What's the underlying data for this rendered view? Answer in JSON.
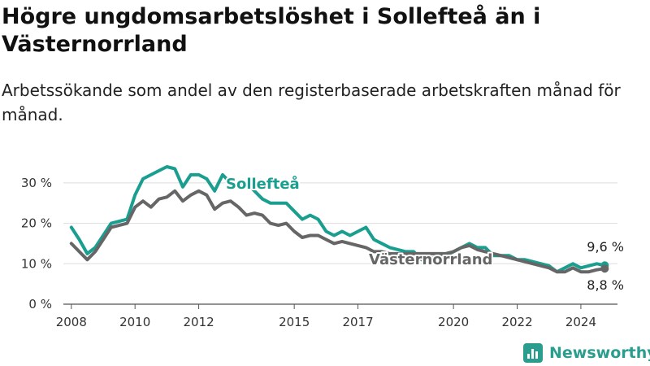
{
  "header": {
    "title": "Högre ungdomsarbetslöshet i Sollefteå än i Västernorrland",
    "subtitle": "Arbetssökande som andel av den registerbaserade arbetskraften månad för månad."
  },
  "brand": {
    "name": "Newsworthy",
    "icon": "bar-chart-icon",
    "color": "#2a9d8f"
  },
  "chart_data": {
    "type": "line",
    "x_ticks": [
      "2008",
      "2010",
      "2012",
      "2015",
      "2017",
      "2020",
      "2022",
      "2024"
    ],
    "y_ticks": [
      "0 %",
      "10 %",
      "20 %",
      "30 %"
    ],
    "ylim": [
      0,
      35
    ],
    "grid": true,
    "series": [
      {
        "name": "Sollefteå",
        "color": "#1a9e8f",
        "end_label": "9,6 %",
        "points": [
          [
            "2008-01",
            19
          ],
          [
            "2008-04",
            16
          ],
          [
            "2008-07",
            12.5
          ],
          [
            "2008-10",
            14
          ],
          [
            "2009-01",
            17
          ],
          [
            "2009-04",
            20
          ],
          [
            "2009-07",
            20.5
          ],
          [
            "2009-10",
            21
          ],
          [
            "2010-01",
            27
          ],
          [
            "2010-04",
            31
          ],
          [
            "2010-07",
            32
          ],
          [
            "2010-10",
            33
          ],
          [
            "2011-01",
            34
          ],
          [
            "2011-04",
            33.5
          ],
          [
            "2011-07",
            29
          ],
          [
            "2011-10",
            32
          ],
          [
            "2012-01",
            32
          ],
          [
            "2012-04",
            31
          ],
          [
            "2012-07",
            28
          ],
          [
            "2012-10",
            32
          ],
          [
            "2013-01",
            30
          ],
          [
            "2013-04",
            29
          ],
          [
            "2013-07",
            30
          ],
          [
            "2013-10",
            28
          ],
          [
            "2014-01",
            26
          ],
          [
            "2014-04",
            25
          ],
          [
            "2014-07",
            25
          ],
          [
            "2014-10",
            25
          ],
          [
            "2015-01",
            23
          ],
          [
            "2015-04",
            21
          ],
          [
            "2015-07",
            22
          ],
          [
            "2015-10",
            21
          ],
          [
            "2016-01",
            18
          ],
          [
            "2016-04",
            17
          ],
          [
            "2016-07",
            18
          ],
          [
            "2016-10",
            17
          ],
          [
            "2017-01",
            18
          ],
          [
            "2017-04",
            19
          ],
          [
            "2017-07",
            16
          ],
          [
            "2017-10",
            15
          ],
          [
            "2018-01",
            14
          ],
          [
            "2018-04",
            13.5
          ],
          [
            "2018-07",
            13
          ],
          [
            "2018-10",
            13
          ],
          [
            "2019-01",
            11
          ],
          [
            "2019-04",
            11
          ],
          [
            "2019-07",
            12
          ],
          [
            "2019-10",
            12
          ],
          [
            "2020-01",
            13
          ],
          [
            "2020-04",
            14
          ],
          [
            "2020-07",
            15
          ],
          [
            "2020-10",
            14
          ],
          [
            "2021-01",
            14
          ],
          [
            "2021-04",
            12
          ],
          [
            "2021-07",
            12
          ],
          [
            "2021-10",
            12
          ],
          [
            "2022-01",
            11
          ],
          [
            "2022-04",
            11
          ],
          [
            "2022-07",
            10.5
          ],
          [
            "2022-10",
            10
          ],
          [
            "2023-01",
            9.5
          ],
          [
            "2023-04",
            8
          ],
          [
            "2023-07",
            9
          ],
          [
            "2023-10",
            10
          ],
          [
            "2024-01",
            9
          ],
          [
            "2024-04",
            9.5
          ],
          [
            "2024-07",
            10
          ],
          [
            "2024-10",
            9.6
          ]
        ]
      },
      {
        "name": "Västernorrland",
        "color": "#666666",
        "end_label": "8,8 %",
        "points": [
          [
            "2008-01",
            15
          ],
          [
            "2008-04",
            13
          ],
          [
            "2008-07",
            11
          ],
          [
            "2008-10",
            13
          ],
          [
            "2009-01",
            16
          ],
          [
            "2009-04",
            19
          ],
          [
            "2009-07",
            19.5
          ],
          [
            "2009-10",
            20
          ],
          [
            "2010-01",
            24
          ],
          [
            "2010-04",
            25.5
          ],
          [
            "2010-07",
            24
          ],
          [
            "2010-10",
            26
          ],
          [
            "2011-01",
            26.5
          ],
          [
            "2011-04",
            28
          ],
          [
            "2011-07",
            25.5
          ],
          [
            "2011-10",
            27
          ],
          [
            "2012-01",
            28
          ],
          [
            "2012-04",
            27
          ],
          [
            "2012-07",
            23.5
          ],
          [
            "2012-10",
            25
          ],
          [
            "2013-01",
            25.5
          ],
          [
            "2013-04",
            24
          ],
          [
            "2013-07",
            22
          ],
          [
            "2013-10",
            22.5
          ],
          [
            "2014-01",
            22
          ],
          [
            "2014-04",
            20
          ],
          [
            "2014-07",
            19.5
          ],
          [
            "2014-10",
            20
          ],
          [
            "2015-01",
            18
          ],
          [
            "2015-04",
            16.5
          ],
          [
            "2015-07",
            17
          ],
          [
            "2015-10",
            17
          ],
          [
            "2016-01",
            16
          ],
          [
            "2016-04",
            15
          ],
          [
            "2016-07",
            15.5
          ],
          [
            "2016-10",
            15
          ],
          [
            "2017-01",
            14.5
          ],
          [
            "2017-04",
            14
          ],
          [
            "2017-07",
            13
          ],
          [
            "2017-10",
            13
          ],
          [
            "2018-01",
            12.5
          ],
          [
            "2018-04",
            12.5
          ],
          [
            "2018-07",
            12.5
          ],
          [
            "2018-10",
            12.5
          ],
          [
            "2019-01",
            12.5
          ],
          [
            "2019-04",
            12.5
          ],
          [
            "2019-07",
            12.5
          ],
          [
            "2019-10",
            12.5
          ],
          [
            "2020-01",
            13
          ],
          [
            "2020-04",
            14
          ],
          [
            "2020-07",
            14.5
          ],
          [
            "2020-10",
            13.5
          ],
          [
            "2021-01",
            13
          ],
          [
            "2021-04",
            12.5
          ],
          [
            "2021-07",
            12
          ],
          [
            "2021-10",
            11.5
          ],
          [
            "2022-01",
            11
          ],
          [
            "2022-04",
            10.5
          ],
          [
            "2022-07",
            10
          ],
          [
            "2022-10",
            9.5
          ],
          [
            "2023-01",
            9
          ],
          [
            "2023-04",
            8
          ],
          [
            "2023-07",
            8
          ],
          [
            "2023-10",
            9
          ],
          [
            "2024-01",
            8
          ],
          [
            "2024-04",
            8
          ],
          [
            "2024-07",
            8.5
          ],
          [
            "2024-10",
            8.8
          ]
        ]
      }
    ]
  }
}
